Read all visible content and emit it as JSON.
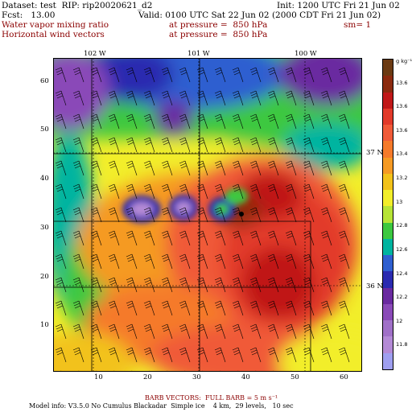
{
  "header": {
    "dataset_line": "Dataset: test  RIP: rip20020621_d2",
    "init_line": "Init: 1200 UTC Fri 21 Jun 02",
    "fcst_line": "Fcst:   13.00",
    "valid_line": "Valid: 0100 UTC Sat 22 Jun 02 (2000 CDT Fri 21 Jun 02)",
    "field1_name": "Water vapor mixing ratio",
    "field1_level": "at pressure =  850 hPa",
    "field1_sm": "sm= 1",
    "field2_name": "Horizontal wind vectors",
    "field2_level": "at pressure =  850 hPa"
  },
  "map": {
    "lon_labels": [
      "102 W",
      "101 W",
      "100 W"
    ],
    "lat_labels": [
      "37 N",
      "36 N"
    ],
    "y_ticks": [
      "60",
      "50",
      "40",
      "30",
      "20",
      "10"
    ],
    "x_ticks": [
      "10",
      "20",
      "30",
      "40",
      "50",
      "60"
    ],
    "station_marker": "dot"
  },
  "colorbar": {
    "units_label": "g kg⁻¹",
    "labels": [
      "13.6",
      "13.6",
      "13.6",
      "13.4",
      "13.2",
      "13",
      "12.8",
      "12.6",
      "12.4",
      "12.2",
      "12",
      "11.8"
    ],
    "colors": [
      "#6b3a12",
      "#8b2a0e",
      "#c01818",
      "#e23a2a",
      "#f05a38",
      "#f57a2a",
      "#f59a24",
      "#f2c21a",
      "#f2ee2a",
      "#b6e436",
      "#3cc840",
      "#00b4a0",
      "#2f5fd0",
      "#2a2ab0",
      "#6a2aa0",
      "#8a4ab8",
      "#a070c8",
      "#b48ad6",
      "#9f9ff0"
    ]
  },
  "footer": {
    "barb_note": "BARB VECTORS:  FULL BARB = 5 m s⁻¹",
    "model_info": "Model info: V3.5.0 No Cumulus Blackadar  Simple ice    4 km,  29 levels,   10 sec"
  }
}
